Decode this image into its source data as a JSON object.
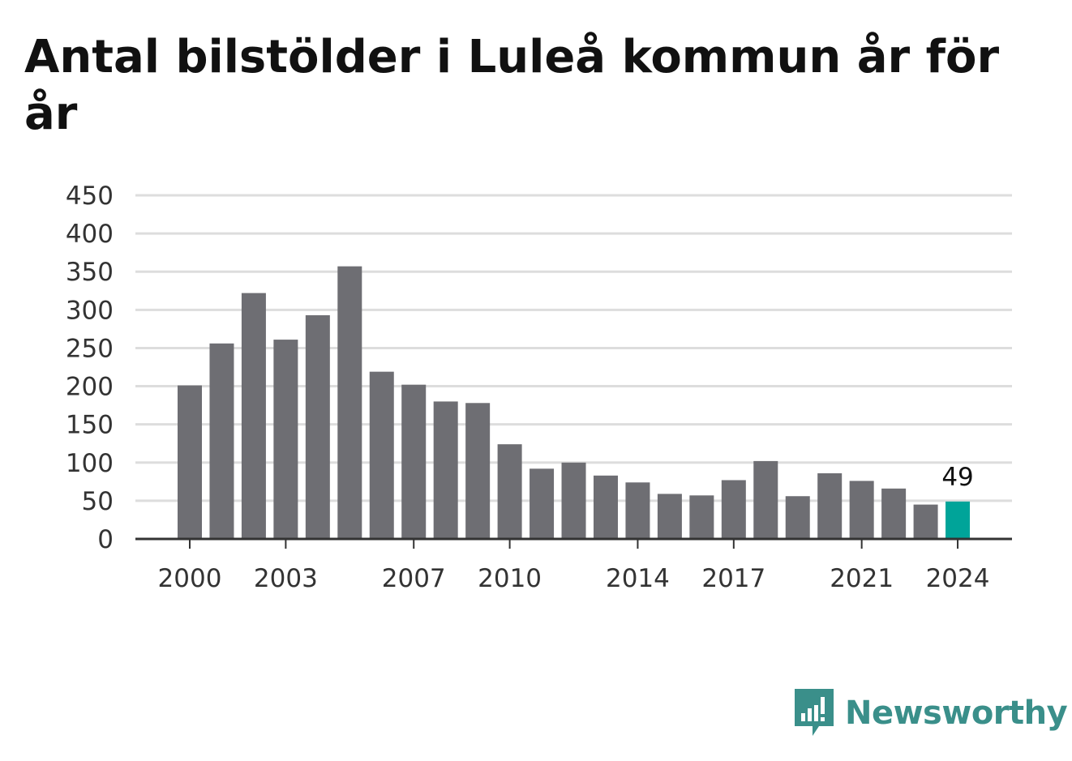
{
  "title": "Antal bilstölder i Luleå kommun år för år",
  "brand": {
    "name": "Newsworthy",
    "icon": "newsworthy-logo-icon",
    "color": "#3a8f8a"
  },
  "colors": {
    "bar": "#6e6e73",
    "highlight": "#00a499",
    "grid": "#dddddd",
    "axis": "#333333"
  },
  "chart_data": {
    "type": "bar",
    "title": "Antal bilstölder i Luleå kommun år för år",
    "xlabel": "",
    "ylabel": "",
    "categories": [
      2000,
      2001,
      2002,
      2003,
      2004,
      2005,
      2006,
      2007,
      2008,
      2009,
      2010,
      2011,
      2012,
      2013,
      2014,
      2015,
      2016,
      2017,
      2018,
      2019,
      2020,
      2021,
      2022,
      2023,
      2024
    ],
    "values": [
      201,
      256,
      322,
      261,
      293,
      357,
      219,
      202,
      180,
      178,
      124,
      92,
      100,
      83,
      74,
      59,
      57,
      77,
      102,
      56,
      86,
      76,
      66,
      45,
      49
    ],
    "highlight_index": 24,
    "data_labels": [
      {
        "index": 24,
        "text": "49"
      }
    ],
    "ylim": [
      0,
      450
    ],
    "yticks": [
      0,
      50,
      100,
      150,
      200,
      250,
      300,
      350,
      400,
      450
    ],
    "xticks": [
      2000,
      2003,
      2007,
      2010,
      2014,
      2017,
      2021,
      2024
    ],
    "grid": true,
    "legend": "none"
  }
}
